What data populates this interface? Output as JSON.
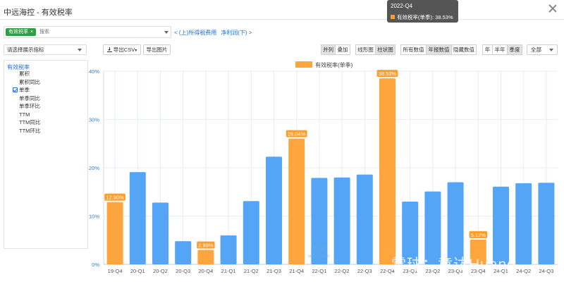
{
  "window": {
    "title": "中远海控 - 有效税率"
  },
  "search": {
    "tag_label": "有效税率",
    "tag_close": "×",
    "placeholder": "搜索"
  },
  "nav_links": {
    "prev": "< (上)所得税费用",
    "next": "净利润(下) >"
  },
  "toolbar": {
    "indicator_select": "请选择展示指标",
    "export_csv": "导出CSV",
    "export_image": "导出图片",
    "layout_buttons": [
      {
        "label": "并列",
        "active": true
      },
      {
        "label": "叠加",
        "active": false
      }
    ],
    "chart_type_buttons": [
      {
        "label": "线形图",
        "active": false
      },
      {
        "label": "柱状图",
        "active": true
      }
    ],
    "value_buttons": [
      {
        "label": "所有数值",
        "active": false
      },
      {
        "label": "年报数值",
        "active": true
      },
      {
        "label": "隐藏数值",
        "active": false
      }
    ],
    "period_buttons": [
      {
        "label": "年",
        "active": false
      },
      {
        "label": "半年",
        "active": false
      },
      {
        "label": "季度",
        "active": true
      }
    ],
    "range_select": "全部"
  },
  "left_panel": {
    "title": "有效税率",
    "options": [
      {
        "label": "累积",
        "checked": false,
        "has_box": false
      },
      {
        "label": "累积同比",
        "checked": false,
        "has_box": false
      },
      {
        "label": "单季",
        "checked": true,
        "has_box": true
      },
      {
        "label": "单季同比",
        "checked": false,
        "has_box": false
      },
      {
        "label": "单季环比",
        "checked": false,
        "has_box": false
      },
      {
        "label": "TTM",
        "checked": false,
        "has_box": false
      },
      {
        "label": "TTM同比",
        "checked": false,
        "has_box": false
      },
      {
        "label": "TTM环比",
        "checked": false,
        "has_box": false
      }
    ]
  },
  "tooltip": {
    "title": "2022-Q4",
    "series": "有效税率(单季)",
    "value": "38.53%"
  },
  "watermark": {
    "text": "雪球：章达Huang",
    "small_top": "雪球",
    "small_bottom": "xueqiu.com"
  },
  "colors": {
    "blue_bar": "#54a5f5",
    "orange_bar": "#ffa53e",
    "label_bg": "#ff9d29",
    "tag_green": "#2f9e44",
    "link_blue": "#1e6fd0"
  },
  "chart_data": {
    "type": "bar",
    "legend": "有效税率(单季)",
    "categories": [
      "19-Q4",
      "20-Q1",
      "20-Q2",
      "20-Q3",
      "20-Q4",
      "21-Q1",
      "21-Q2",
      "21-Q3",
      "21-Q4",
      "22-Q1",
      "22-Q2",
      "22-Q3",
      "22-Q4",
      "23-Q1",
      "23-Q2",
      "23-Q3",
      "23-Q4",
      "24-Q1",
      "24-Q2",
      "24-Q3"
    ],
    "values": [
      12.9,
      19.1,
      12.8,
      4.8,
      2.99,
      6.0,
      13.1,
      22.3,
      26.04,
      17.9,
      18.0,
      18.6,
      38.53,
      13.0,
      15.1,
      17.0,
      5.12,
      16.1,
      16.8,
      16.9
    ],
    "annual": [
      true,
      false,
      false,
      false,
      true,
      false,
      false,
      false,
      true,
      false,
      false,
      false,
      true,
      false,
      false,
      false,
      true,
      false,
      false,
      false
    ],
    "data_labels": [
      "12.90%",
      "",
      "",
      "",
      "2.99%",
      "",
      "",
      "",
      "26.04%",
      "",
      "",
      "",
      "38.53%",
      "",
      "",
      "",
      "5.12%",
      "",
      "",
      ""
    ],
    "yticks": [
      "0%",
      "10%",
      "20%",
      "30%",
      "40%"
    ],
    "ylim": [
      0,
      40
    ],
    "grid": true
  }
}
